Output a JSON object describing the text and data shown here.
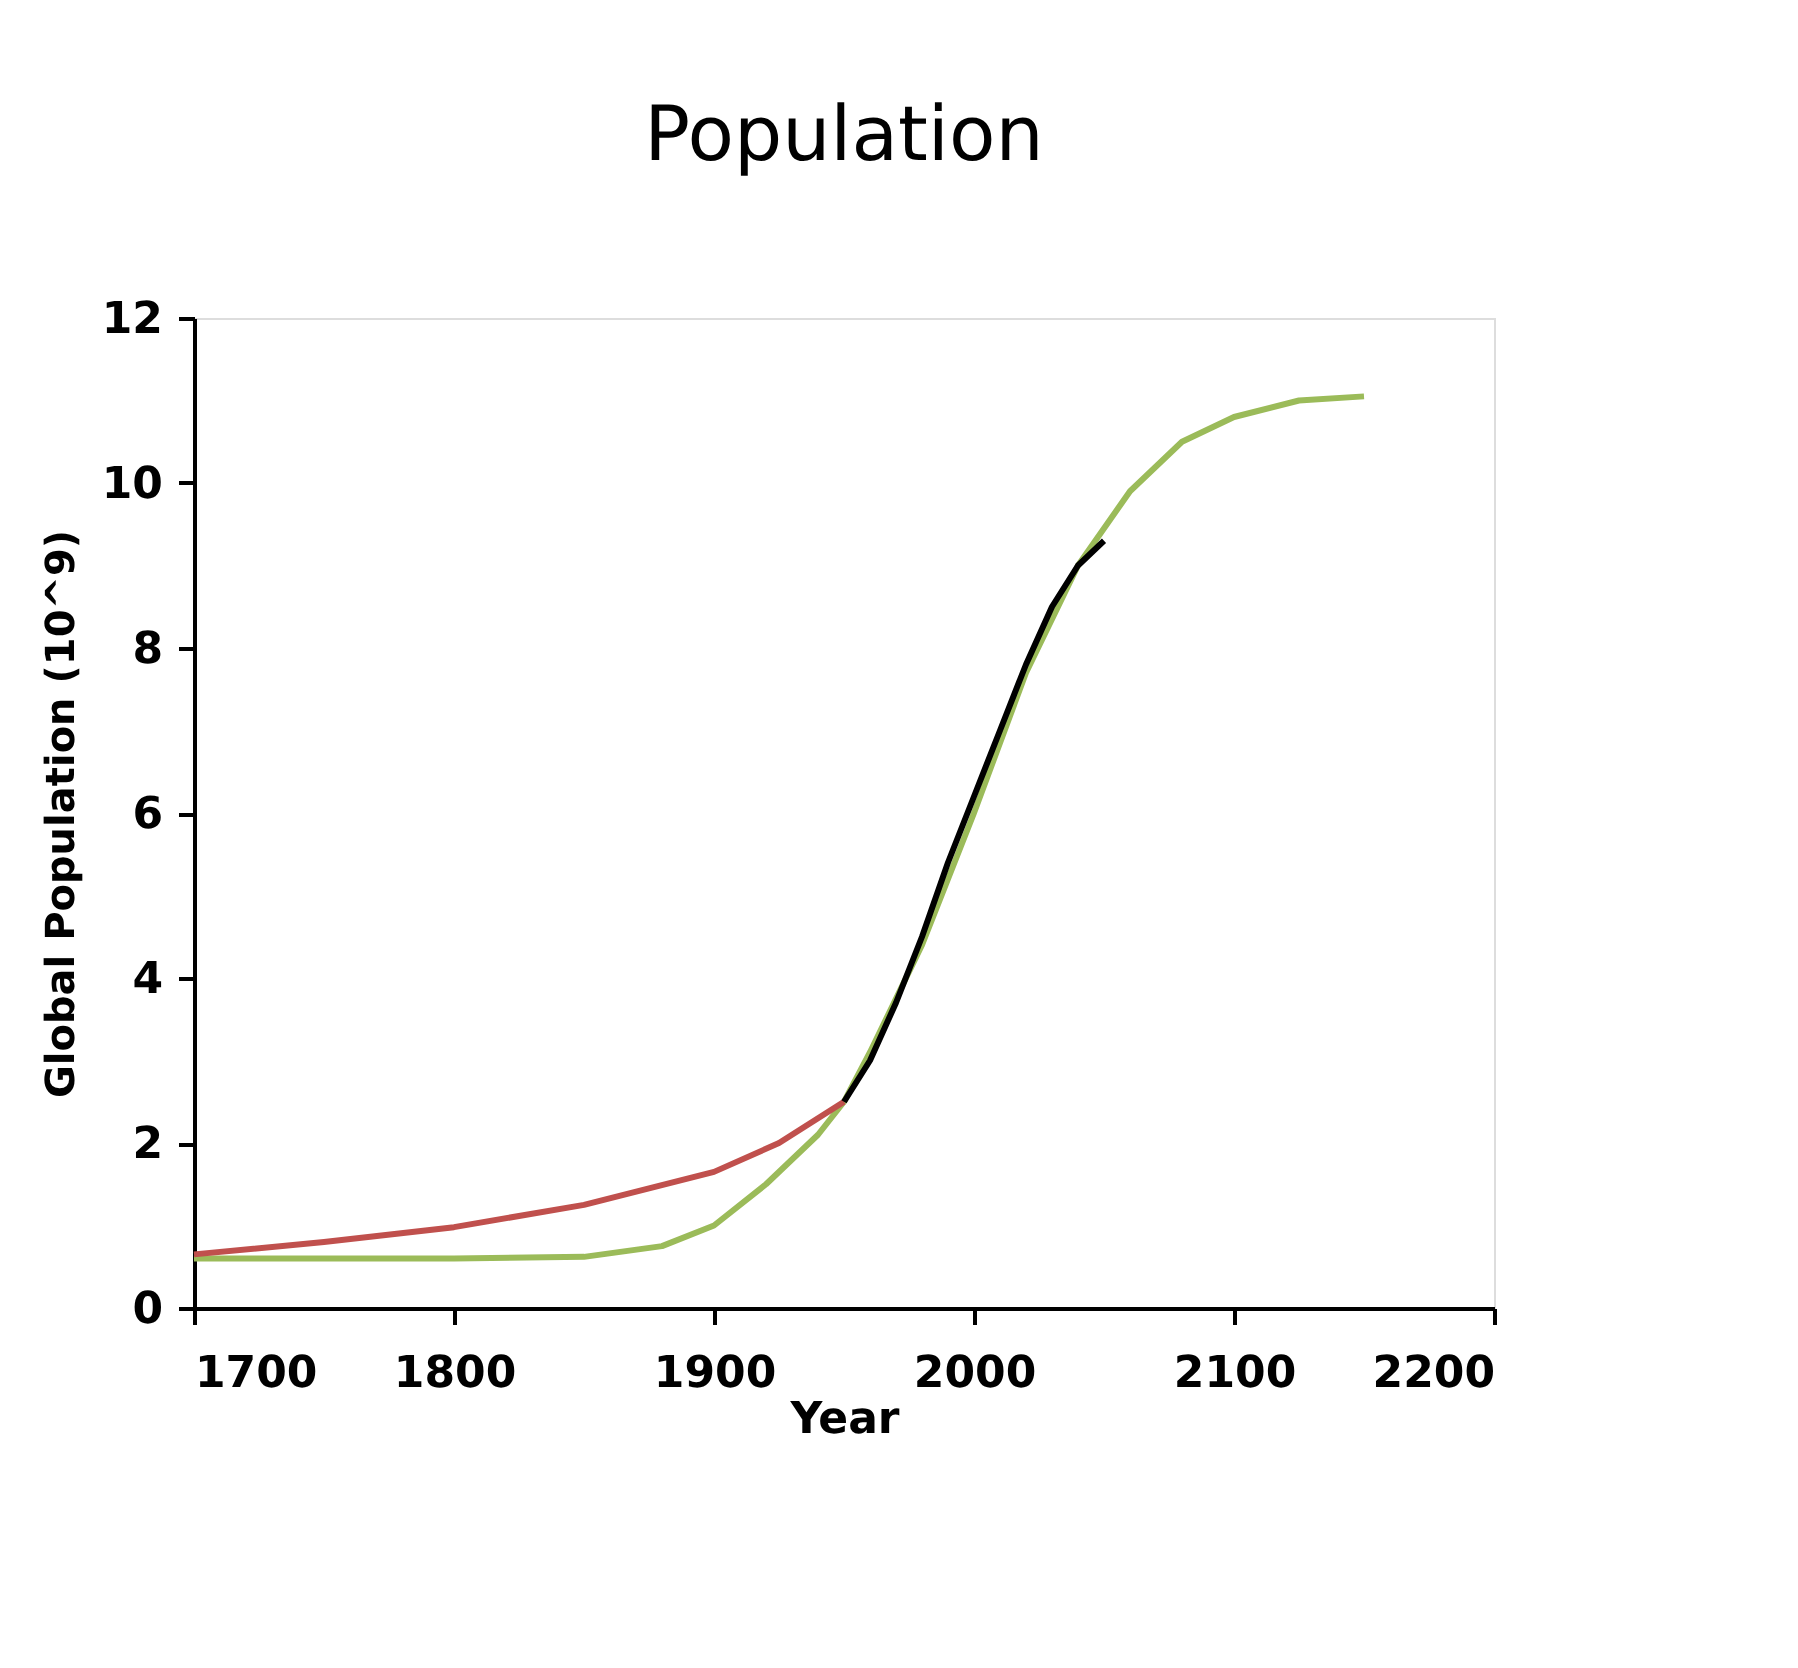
{
  "chart_data": {
    "type": "line",
    "title": "Population",
    "xlabel": "Year",
    "ylabel": "Global Population (10^9)",
    "xlim": [
      1700,
      2200
    ],
    "xticks": [
      1700,
      1800,
      1900,
      2000,
      2100,
      2200
    ],
    "ylim": [
      0,
      12
    ],
    "yticks": [
      0,
      2,
      4,
      6,
      8,
      10,
      12
    ],
    "grid": false,
    "marker": "none",
    "line_style": "solid",
    "series": [
      {
        "color": "#9bbb59",
        "x": [
          1700,
          1800,
          1850,
          1880,
          1900,
          1920,
          1940,
          1950,
          1960,
          1980,
          2000,
          2020,
          2040,
          2060,
          2080,
          2100,
          2125,
          2150
        ],
        "values": [
          0.6,
          0.6,
          0.62,
          0.75,
          1.0,
          1.5,
          2.1,
          2.5,
          3.1,
          4.4,
          6.0,
          7.7,
          9.0,
          9.9,
          10.5,
          10.8,
          11.0,
          11.05
        ]
      },
      {
        "color": "#c0504d",
        "x": [
          1700,
          1750,
          1800,
          1850,
          1900,
          1925,
          1950
        ],
        "values": [
          0.65,
          0.8,
          0.98,
          1.25,
          1.65,
          2.0,
          2.5
        ]
      },
      {
        "color": "#000000",
        "x": [
          1950,
          1960,
          1970,
          1980,
          1990,
          2000,
          2010,
          2020,
          2030,
          2040,
          2050
        ],
        "values": [
          2.5,
          3.0,
          3.7,
          4.5,
          5.4,
          6.2,
          7.0,
          7.8,
          8.5,
          9.0,
          9.3
        ]
      }
    ]
  }
}
